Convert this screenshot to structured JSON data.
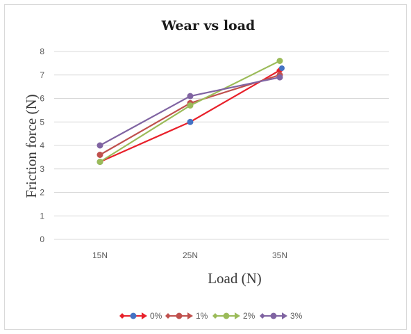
{
  "chart_data": {
    "type": "line",
    "title": "Wear vs load",
    "xlabel": "Load (N)",
    "ylabel": "Friction force (N)",
    "categories": [
      "15N",
      "25N",
      "35N"
    ],
    "ylim": [
      0,
      8
    ],
    "yticks": [
      0,
      1,
      2,
      3,
      4,
      5,
      6,
      7,
      8
    ],
    "grid": "horizontal",
    "legend_position": "bottom",
    "series": [
      {
        "name": "0%",
        "values": [
          3.3,
          5.0,
          7.2
        ],
        "color": "#e8202a",
        "marker_color": "#4472c4",
        "end_marker": "diamond"
      },
      {
        "name": "1%",
        "values": [
          3.6,
          5.8,
          7.0
        ],
        "color": "#c0504d",
        "marker_color": "#c0504d",
        "end_marker": "circle"
      },
      {
        "name": "2%",
        "values": [
          3.3,
          5.7,
          7.6
        ],
        "color": "#9bbb59",
        "marker_color": "#9bbb59",
        "end_marker": "circle"
      },
      {
        "name": "3%",
        "values": [
          4.0,
          6.1,
          6.9
        ],
        "color": "#8064a2",
        "marker_color": "#8064a2",
        "end_marker": "circle"
      }
    ]
  }
}
